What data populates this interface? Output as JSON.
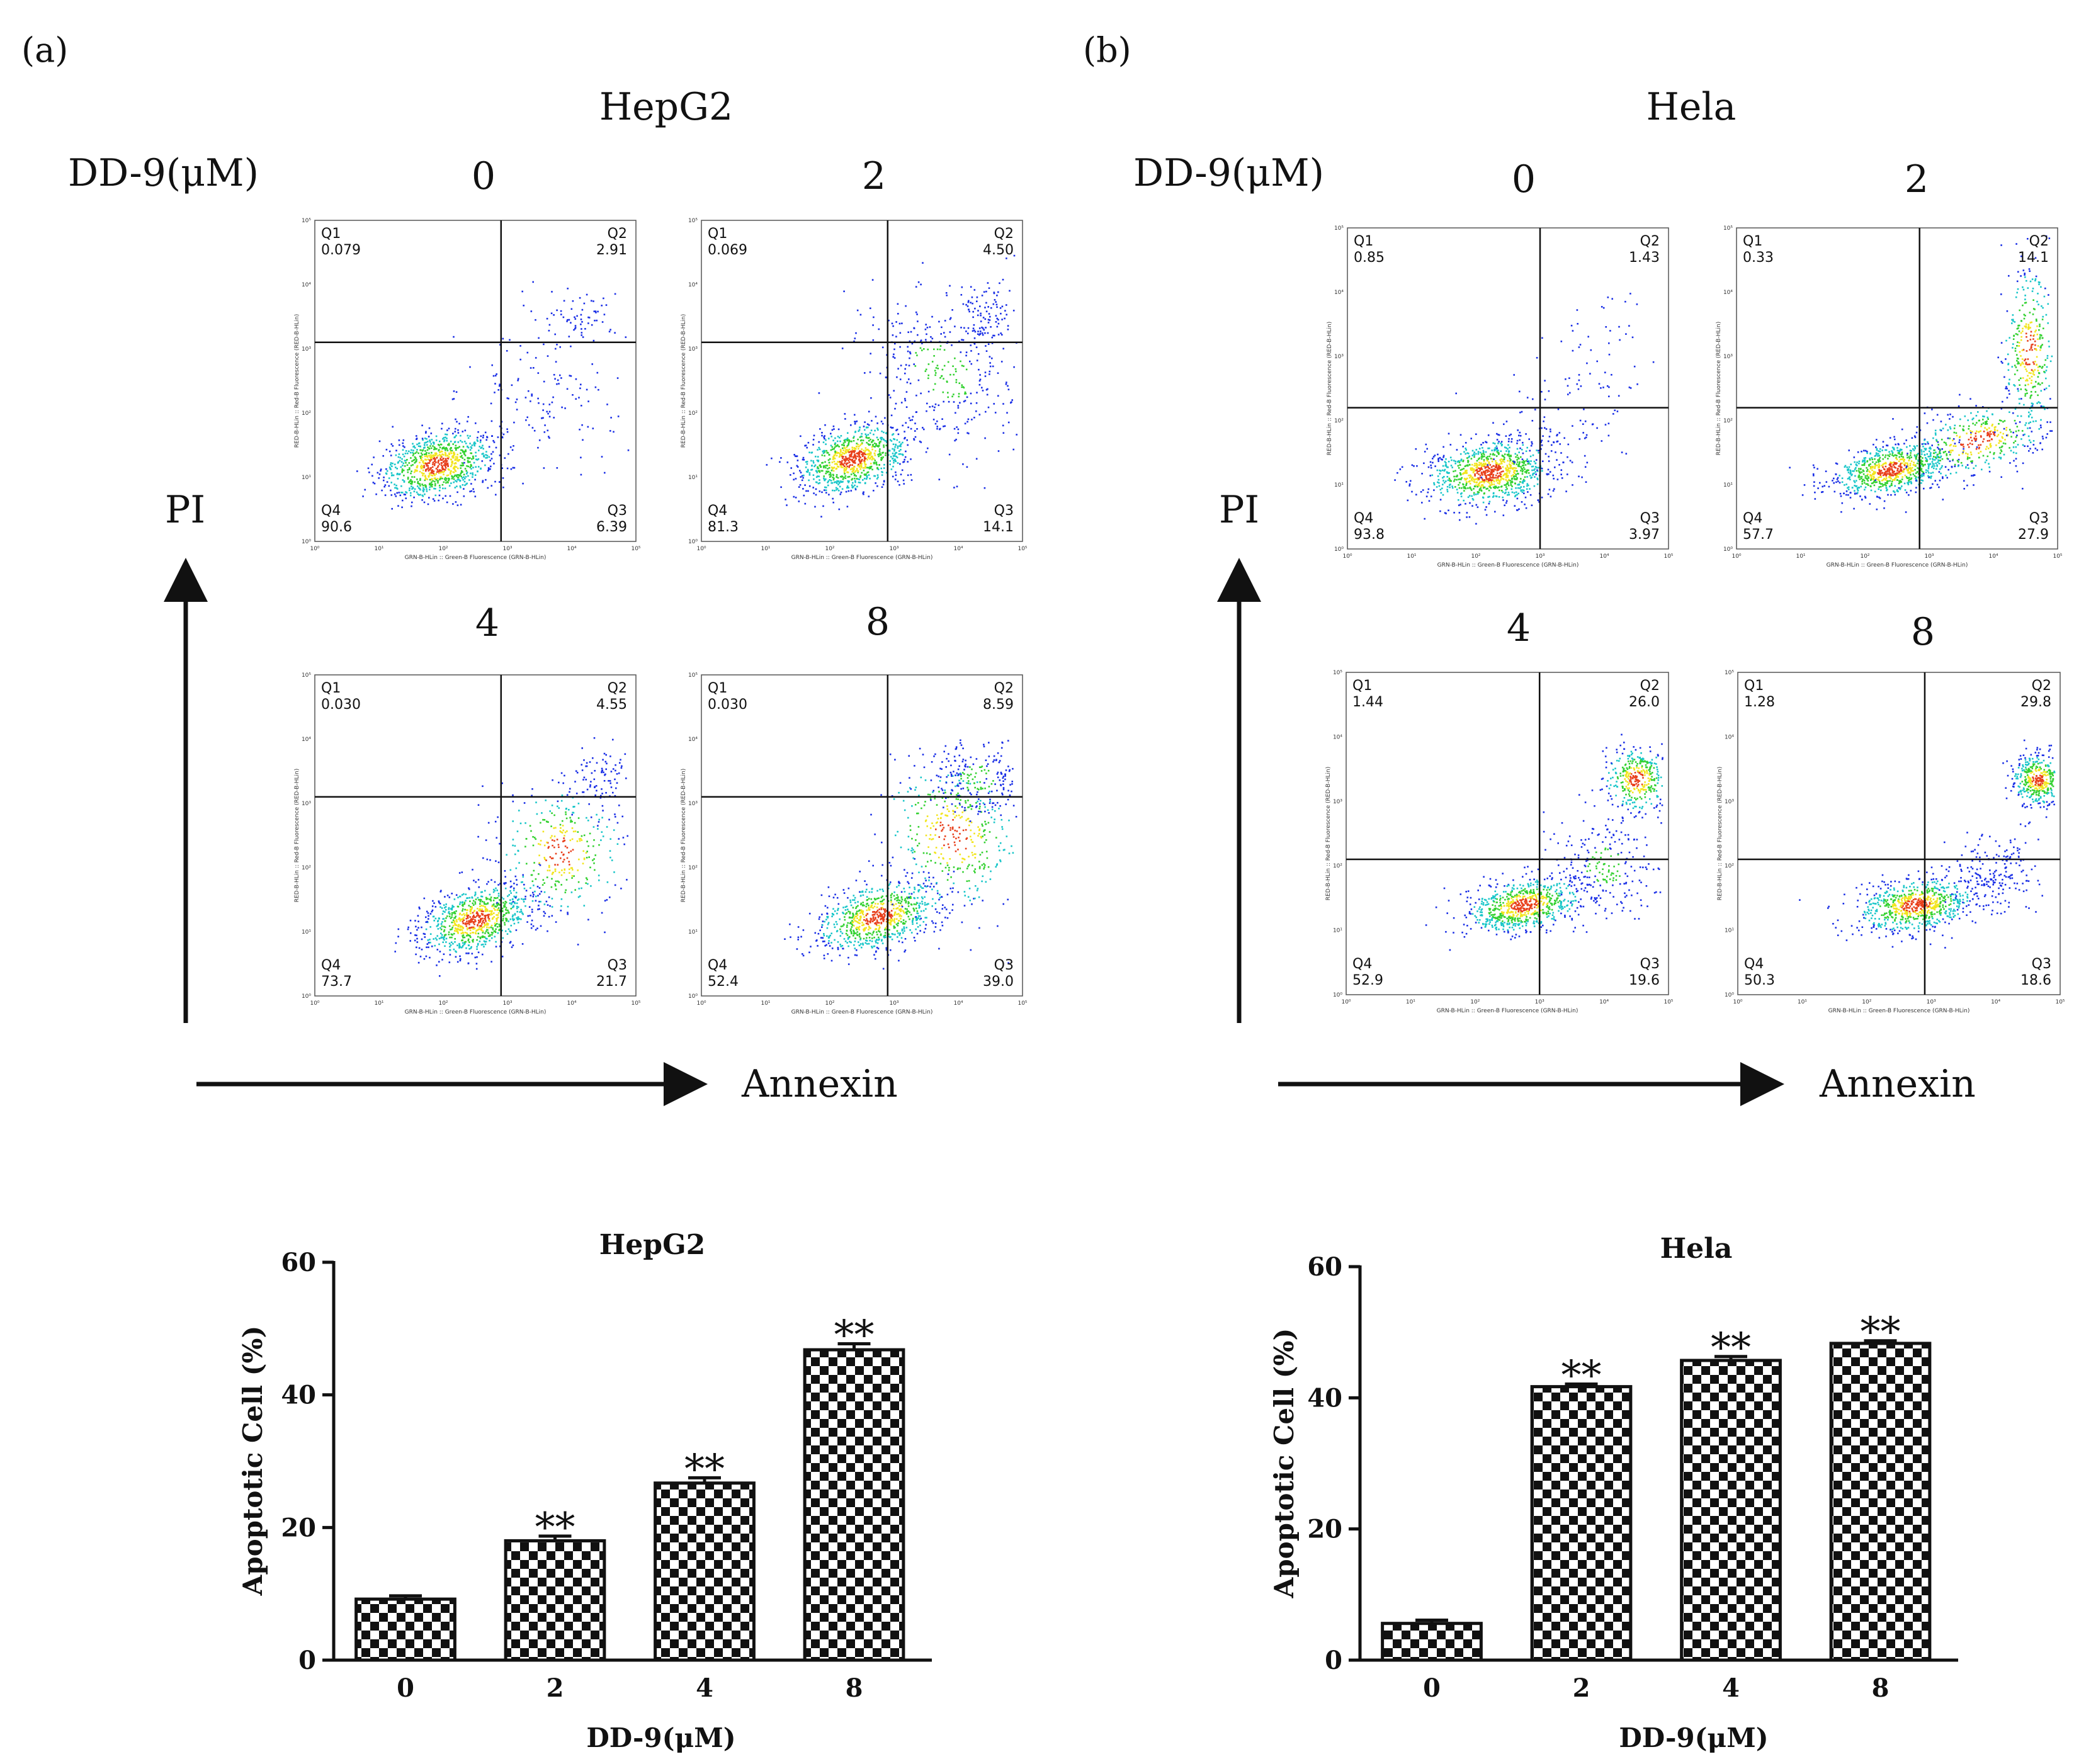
{
  "figure": {
    "panels": [
      {
        "label": "(a)",
        "cell_line": "HepG2",
        "treatment_label": "DD-9(μM)",
        "y_marker": "PI",
        "x_marker": "Annexin",
        "plots": [
          {
            "dose": "0",
            "Q1": "0.079",
            "Q2": "2.91",
            "Q3": "6.39",
            "Q4": "90.6"
          },
          {
            "dose": "2",
            "Q1": "0.069",
            "Q2": "4.50",
            "Q3": "14.1",
            "Q4": "81.3"
          },
          {
            "dose": "4",
            "Q1": "0.030",
            "Q2": "4.55",
            "Q3": "21.7",
            "Q4": "73.7"
          },
          {
            "dose": "8",
            "Q1": "0.030",
            "Q2": "8.59",
            "Q3": "39.0",
            "Q4": "52.4"
          }
        ]
      },
      {
        "label": "(b)",
        "cell_line": "Hela",
        "treatment_label": "DD-9(μM)",
        "y_marker": "PI",
        "x_marker": "Annexin",
        "plots": [
          {
            "dose": "0",
            "Q1": "0.85",
            "Q2": "1.43",
            "Q3": "3.97",
            "Q4": "93.8"
          },
          {
            "dose": "2",
            "Q1": "0.33",
            "Q2": "14.1",
            "Q3": "27.9",
            "Q4": "57.7"
          },
          {
            "dose": "4",
            "Q1": "1.44",
            "Q2": "26.0",
            "Q3": "19.6",
            "Q4": "52.9"
          },
          {
            "dose": "8",
            "Q1": "1.28",
            "Q2": "29.8",
            "Q3": "18.6",
            "Q4": "50.3"
          }
        ]
      }
    ],
    "flow_axes": {
      "x_title": "GRN-B-HLin :: Green-B Fluorescence (GRN-B-HLin)",
      "y_title": "RED-B-HLin :: Red-B Fluorescence (RED-B-HLin)",
      "ticks": [
        "10⁰",
        "10¹",
        "10²",
        "10³",
        "10⁴",
        "10⁵"
      ]
    },
    "quadrant_names": {
      "q1": "Q1",
      "q2": "Q2",
      "q3": "Q3",
      "q4": "Q4"
    }
  },
  "chart_data": [
    {
      "type": "bar",
      "title": "HepG2",
      "categories": [
        "0",
        "2",
        "4",
        "8"
      ],
      "values": [
        9.2,
        18.0,
        26.7,
        46.8
      ],
      "errors": [
        0.5,
        0.7,
        0.8,
        0.9
      ],
      "annotations": [
        "",
        "**",
        "**",
        "**"
      ],
      "xlabel": "DD-9(μM)",
      "ylabel": "Apoptotic Cell (%)",
      "ylim": [
        0,
        60
      ],
      "yticks": [
        0,
        20,
        40,
        60
      ]
    },
    {
      "type": "bar",
      "title": "Hela",
      "categories": [
        "0",
        "2",
        "4",
        "8"
      ],
      "values": [
        5.6,
        41.7,
        45.7,
        48.3
      ],
      "errors": [
        0.5,
        0.4,
        0.6,
        0.4
      ],
      "annotations": [
        "",
        "**",
        "**",
        "**"
      ],
      "xlabel": "DD-9(μM)",
      "ylabel": "Apoptotic Cell (%)",
      "ylim": [
        0,
        60
      ],
      "yticks": [
        0,
        20,
        40,
        60
      ]
    }
  ],
  "colors": {
    "ink": "#111111",
    "scatter_low": "#1a2fe6",
    "scatter_mid": "#19c6c9",
    "scatter_high": "#33d130",
    "scatter_peak": "#f2e51e",
    "scatter_core": "#e8401c"
  }
}
